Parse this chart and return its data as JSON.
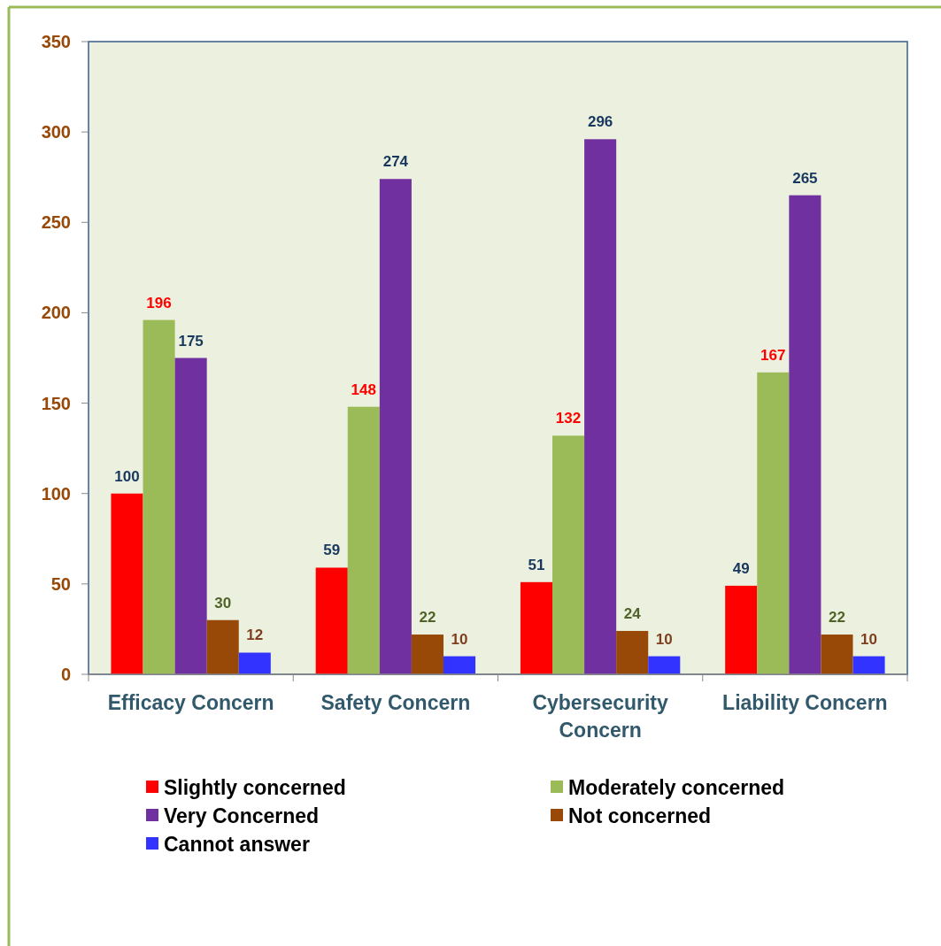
{
  "chart_data": {
    "type": "bar",
    "categories": [
      "Efficacy Concern",
      "Safety Concern",
      "Cybersecurity Concern",
      "Liability Concern"
    ],
    "series": [
      {
        "name": "Slightly concerned",
        "color": "#ff0000",
        "values": [
          100,
          59,
          51,
          49
        ]
      },
      {
        "name": "Moderately concerned",
        "color": "#9bbb59",
        "values": [
          196,
          148,
          132,
          167
        ]
      },
      {
        "name": "Very Concerned",
        "color": "#7030a0",
        "values": [
          175,
          274,
          296,
          265
        ]
      },
      {
        "name": "Not concerned",
        "color": "#984807",
        "values": [
          30,
          22,
          24,
          22
        ]
      },
      {
        "name": "Cannot answer",
        "color": "#3333ff",
        "values": [
          12,
          10,
          10,
          10
        ]
      }
    ],
    "ylim": [
      0,
      350
    ],
    "yticks": [
      0,
      50,
      100,
      150,
      200,
      250,
      300,
      350
    ],
    "grid": false,
    "legend": "bottom",
    "data_labels": true
  }
}
